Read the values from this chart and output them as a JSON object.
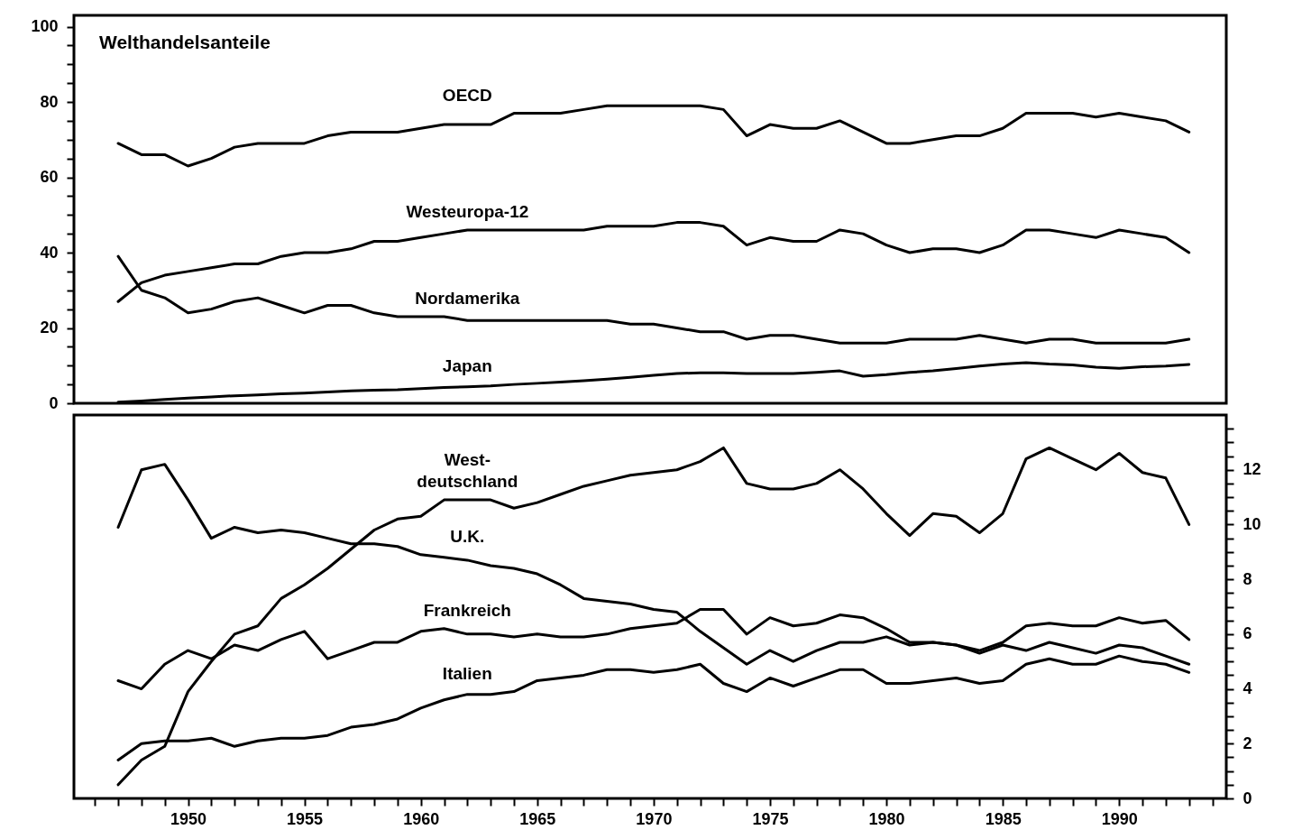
{
  "chart_data": [
    {
      "type": "line",
      "title": "Welthandelsanteile",
      "x": [
        1947,
        1948,
        1949,
        1950,
        1951,
        1952,
        1953,
        1954,
        1955,
        1956,
        1957,
        1958,
        1959,
        1960,
        1961,
        1962,
        1963,
        1964,
        1965,
        1966,
        1967,
        1968,
        1969,
        1970,
        1971,
        1972,
        1973,
        1974,
        1975,
        1976,
        1977,
        1978,
        1979,
        1980,
        1981,
        1982,
        1983,
        1984,
        1985,
        1986,
        1987,
        1988,
        1989,
        1990,
        1991,
        1992,
        1993
      ],
      "xlim": [
        1945.1,
        1994.6
      ],
      "ylim": [
        0,
        103
      ],
      "yticks": [
        0,
        {
          "value": 5,
          "label": null
        },
        20,
        {
          "value": 10,
          "label": null
        },
        {
          "value": 15,
          "label": null
        },
        {
          "value": 25,
          "label": null
        },
        {
          "value": 30,
          "label": null
        },
        {
          "value": 35,
          "label": null
        },
        40,
        {
          "value": 45,
          "label": null
        },
        {
          "value": 50,
          "label": null
        },
        {
          "value": 55,
          "label": null
        },
        60,
        {
          "value": 65,
          "label": null
        },
        {
          "value": 70,
          "label": null
        },
        {
          "value": 75,
          "label": null
        },
        80,
        {
          "value": 85,
          "label": null
        },
        {
          "value": 90,
          "label": null
        },
        {
          "value": 95,
          "label": null
        },
        100
      ],
      "tick_labels": "y",
      "grid": false,
      "legend": false,
      "series": [
        {
          "name": "OECD",
          "color": "#000000",
          "values": [
            69,
            66,
            66,
            63,
            65,
            68,
            69,
            69,
            69,
            71,
            72,
            72,
            72,
            73,
            74,
            74,
            74,
            77,
            77,
            77,
            78,
            79,
            79,
            79,
            79,
            79,
            78,
            71,
            74,
            73,
            73,
            75,
            72,
            69,
            69,
            70,
            71,
            71,
            73,
            77,
            77,
            77,
            76,
            77,
            76,
            75,
            72
          ]
        },
        {
          "name": "Westeuropa-12",
          "color": "#000000",
          "values": [
            27,
            32,
            34,
            35,
            36,
            37,
            37,
            39,
            40,
            40,
            41,
            43,
            43,
            44,
            45,
            46,
            46,
            46,
            46,
            46,
            46,
            47,
            47,
            47,
            48,
            48,
            47,
            42,
            44,
            43,
            43,
            46,
            45,
            42,
            40,
            41,
            41,
            40,
            42,
            46,
            46,
            45,
            44,
            46,
            45,
            44,
            40
          ]
        },
        {
          "name": "Nordamerika",
          "color": "#000000",
          "values": [
            39,
            30,
            28,
            24,
            25,
            27,
            28,
            26,
            24,
            26,
            26,
            24,
            23,
            23,
            23,
            22,
            22,
            22,
            22,
            22,
            22,
            22,
            21,
            21,
            20,
            19,
            19,
            17,
            18,
            18,
            17,
            16,
            16,
            16,
            17,
            17,
            17,
            18,
            17,
            16,
            17,
            17,
            16,
            16,
            16,
            16,
            17
          ]
        },
        {
          "name": "Japan",
          "color": "#000000",
          "values": [
            0.3,
            0.6,
            1,
            1.4,
            1.7,
            2,
            2.2,
            2.5,
            2.7,
            3,
            3.3,
            3.5,
            3.6,
            3.9,
            4.2,
            4.4,
            4.6,
            5,
            5.3,
            5.6,
            6,
            6.4,
            6.9,
            7.4,
            7.9,
            8.1,
            8.1,
            7.9,
            7.9,
            7.9,
            8.2,
            8.6,
            7.2,
            7.6,
            8.2,
            8.6,
            9.2,
            9.9,
            10.4,
            10.8,
            10.4,
            10.2,
            9.6,
            9.3,
            9.7,
            9.9,
            10.3
          ]
        }
      ]
    },
    {
      "type": "line",
      "x": [
        1947,
        1948,
        1949,
        1950,
        1951,
        1952,
        1953,
        1954,
        1955,
        1956,
        1957,
        1958,
        1959,
        1960,
        1961,
        1962,
        1963,
        1964,
        1965,
        1966,
        1967,
        1968,
        1969,
        1970,
        1971,
        1972,
        1973,
        1974,
        1975,
        1976,
        1977,
        1978,
        1979,
        1980,
        1981,
        1982,
        1983,
        1984,
        1985,
        1986,
        1987,
        1988,
        1989,
        1990,
        1991,
        1992,
        1993
      ],
      "xlim": [
        1945.1,
        1994.6
      ],
      "xticks": [
        {
          "value": 1946,
          "label": null
        },
        {
          "value": 1947,
          "label": null
        },
        {
          "value": 1948,
          "label": null
        },
        {
          "value": 1949,
          "label": null
        },
        1950,
        {
          "value": 1951,
          "label": null
        },
        {
          "value": 1952,
          "label": null
        },
        {
          "value": 1953,
          "label": null
        },
        {
          "value": 1954,
          "label": null
        },
        1955,
        {
          "value": 1956,
          "label": null
        },
        {
          "value": 1957,
          "label": null
        },
        {
          "value": 1958,
          "label": null
        },
        {
          "value": 1959,
          "label": null
        },
        1960,
        {
          "value": 1961,
          "label": null
        },
        {
          "value": 1962,
          "label": null
        },
        {
          "value": 1963,
          "label": null
        },
        {
          "value": 1964,
          "label": null
        },
        1965,
        {
          "value": 1966,
          "label": null
        },
        {
          "value": 1967,
          "label": null
        },
        {
          "value": 1968,
          "label": null
        },
        {
          "value": 1969,
          "label": null
        },
        1970,
        {
          "value": 1971,
          "label": null
        },
        {
          "value": 1972,
          "label": null
        },
        {
          "value": 1973,
          "label": null
        },
        {
          "value": 1974,
          "label": null
        },
        1975,
        {
          "value": 1976,
          "label": null
        },
        {
          "value": 1977,
          "label": null
        },
        {
          "value": 1978,
          "label": null
        },
        {
          "value": 1979,
          "label": null
        },
        1980,
        {
          "value": 1981,
          "label": null
        },
        {
          "value": 1982,
          "label": null
        },
        {
          "value": 1983,
          "label": null
        },
        {
          "value": 1984,
          "label": null
        },
        1985,
        {
          "value": 1986,
          "label": null
        },
        {
          "value": 1987,
          "label": null
        },
        {
          "value": 1988,
          "label": null
        },
        {
          "value": 1989,
          "label": null
        },
        1990,
        {
          "value": 1991,
          "label": null
        },
        {
          "value": 1992,
          "label": null
        },
        {
          "value": 1993,
          "label": null
        },
        {
          "value": 1994,
          "label": null
        }
      ],
      "y2lim": [
        0,
        14
      ],
      "y2ticks": [
        0,
        {
          "value": 0.5,
          "label": null
        },
        {
          "value": 1,
          "label": null
        },
        {
          "value": 1.5,
          "label": null
        },
        2,
        {
          "value": 2.5,
          "label": null
        },
        {
          "value": 3,
          "label": null
        },
        {
          "value": 3.5,
          "label": null
        },
        4,
        {
          "value": 4.5,
          "label": null
        },
        {
          "value": 5,
          "label": null
        },
        {
          "value": 5.5,
          "label": null
        },
        6,
        {
          "value": 6.5,
          "label": null
        },
        {
          "value": 7,
          "label": null
        },
        {
          "value": 7.5,
          "label": null
        },
        8,
        {
          "value": 8.5,
          "label": null
        },
        {
          "value": 9,
          "label": null
        },
        {
          "value": 9.5,
          "label": null
        },
        10,
        {
          "value": 10.5,
          "label": null
        },
        {
          "value": 11,
          "label": null
        },
        {
          "value": 11.5,
          "label": null
        },
        12,
        {
          "value": 12.5,
          "label": null
        },
        {
          "value": 13,
          "label": null
        },
        {
          "value": 13.5,
          "label": null
        }
      ],
      "grid": false,
      "legend": false,
      "series": [
        {
          "name": "West-\ndeutschland",
          "color": "#000000",
          "axis": "y2",
          "values": [
            0.5,
            1.4,
            1.9,
            3.9,
            5,
            6,
            6.3,
            7.3,
            7.8,
            8.4,
            9.1,
            9.8,
            10.2,
            10.3,
            10.9,
            10.9,
            10.9,
            10.6,
            10.8,
            11.1,
            11.4,
            11.6,
            11.8,
            11.9,
            12,
            12.3,
            12.8,
            11.5,
            11.3,
            11.3,
            11.5,
            12,
            11.3,
            10.4,
            9.6,
            10.4,
            10.3,
            9.7,
            10.4,
            12.4,
            12.8,
            12.4,
            12,
            12.6,
            11.9,
            11.7,
            10
          ]
        },
        {
          "name": "U.K.",
          "color": "#000000",
          "axis": "y2",
          "values": [
            9.9,
            12,
            12.2,
            10.9,
            9.5,
            9.9,
            9.7,
            9.8,
            9.7,
            9.5,
            9.3,
            9.3,
            9.2,
            8.9,
            8.8,
            8.7,
            8.5,
            8.4,
            8.2,
            7.8,
            7.3,
            7.2,
            7.1,
            6.9,
            6.8,
            6.1,
            5.5,
            4.9,
            5.4,
            5,
            5.4,
            5.7,
            5.7,
            5.9,
            5.6,
            5.7,
            5.6,
            5.3,
            5.6,
            5.4,
            5.7,
            5.5,
            5.3,
            5.6,
            5.5,
            5.2,
            4.9
          ]
        },
        {
          "name": "Frankreich",
          "color": "#000000",
          "axis": "y2",
          "values": [
            4.3,
            4,
            4.9,
            5.4,
            5.1,
            5.6,
            5.4,
            5.8,
            6.1,
            5.1,
            5.4,
            5.7,
            5.7,
            6.1,
            6.2,
            6,
            6,
            5.9,
            6,
            5.9,
            5.9,
            6,
            6.2,
            6.3,
            6.4,
            6.9,
            6.9,
            6,
            6.6,
            6.3,
            6.4,
            6.7,
            6.6,
            6.2,
            5.7,
            5.7,
            5.6,
            5.4,
            5.7,
            6.3,
            6.4,
            6.3,
            6.3,
            6.6,
            6.4,
            6.5,
            5.8
          ]
        },
        {
          "name": "Italien",
          "color": "#000000",
          "axis": "y2",
          "values": [
            1.4,
            2,
            2.1,
            2.1,
            2.2,
            1.9,
            2.1,
            2.2,
            2.2,
            2.3,
            2.6,
            2.7,
            2.9,
            3.3,
            3.6,
            3.8,
            3.8,
            3.9,
            4.3,
            4.4,
            4.5,
            4.7,
            4.7,
            4.6,
            4.7,
            4.9,
            4.2,
            3.9,
            4.4,
            4.1,
            4.4,
            4.7,
            4.7,
            4.2,
            4.2,
            4.3,
            4.4,
            4.2,
            4.3,
            4.9,
            5.1,
            4.9,
            4.9,
            5.2,
            5,
            4.9,
            4.6
          ]
        }
      ]
    }
  ]
}
